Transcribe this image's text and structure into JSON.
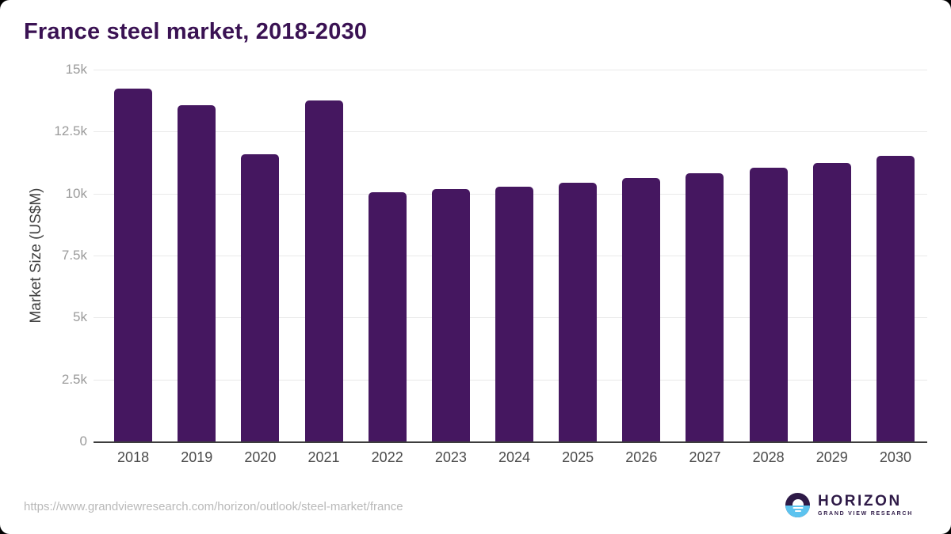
{
  "chart_data": {
    "type": "bar",
    "title": "France steel market, 2018-2030",
    "xlabel": "",
    "ylabel": "Market Size (US$M)",
    "categories": [
      "2018",
      "2019",
      "2020",
      "2021",
      "2022",
      "2023",
      "2024",
      "2025",
      "2026",
      "2027",
      "2028",
      "2029",
      "2030"
    ],
    "values": [
      14250,
      13580,
      11570,
      13760,
      10050,
      10190,
      10290,
      10450,
      10630,
      10830,
      11030,
      11250,
      11510
    ],
    "ylim": [
      0,
      15000
    ],
    "yticks": [
      {
        "label": "15k",
        "value": 15000
      },
      {
        "label": "12.5k",
        "value": 12500
      },
      {
        "label": "10k",
        "value": 10000
      },
      {
        "label": "7.5k",
        "value": 7500
      },
      {
        "label": "5k",
        "value": 5000
      },
      {
        "label": "2.5k",
        "value": 2500
      },
      {
        "label": "0",
        "value": 0
      }
    ],
    "grid": "horizontal",
    "legend": false
  },
  "footer": {
    "url": "https://www.grandviewresearch.com/horizon/outlook/steel-market/france",
    "logo": {
      "name": "HORIZON",
      "subtitle": "GRAND VIEW RESEARCH"
    }
  },
  "colors": {
    "bar": "#451760",
    "title": "#3a1253",
    "axis": "#3d3d3d",
    "grid": "#e9e9e9",
    "y_tick_label": "#9b9b9b",
    "y_axis_title": "#424242",
    "x_tick_label": "#4b4b4b",
    "url": "#b9b9b9",
    "logo_purple": "#2e1a47",
    "logo_blue": "#5cc3ef"
  }
}
